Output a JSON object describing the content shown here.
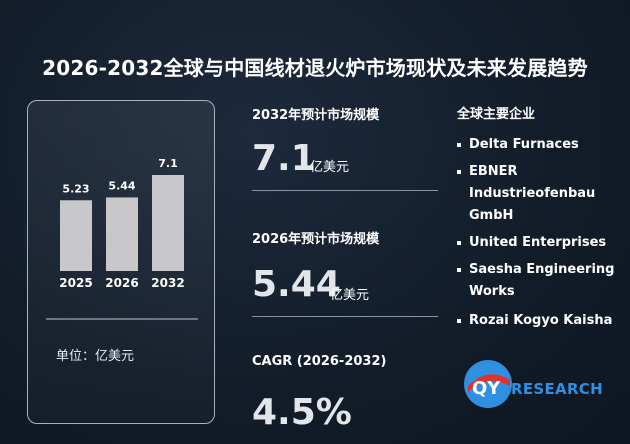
{
  "title": "2026-2032全球与中国线材退火炉市场现状及未来发展趋势",
  "chart_data": {
    "type": "bar",
    "categories": [
      "2025",
      "2026",
      "2032"
    ],
    "values": [
      5.23,
      5.44,
      7.1
    ],
    "value_labels": [
      "5.23",
      "5.44",
      "7.1"
    ],
    "bar_color": "#c8c8ca",
    "unit_label": "单位：亿美元"
  },
  "stats": {
    "forecast_2032_label": "2032年预计市场规模",
    "forecast_2032_value": "7.1",
    "forecast_2032_unit": "亿美元",
    "forecast_2026_label": "2026年预计市场规模",
    "forecast_2026_value": "5.44",
    "forecast_2026_unit": "亿美元",
    "cagr_label": "CAGR (2026-2032)",
    "cagr_value": "4.5%"
  },
  "companies": {
    "title": "全球主要企业",
    "items": [
      "Delta Furnaces",
      "EBNER Industrieofenbau GmbH",
      "United Enterprises",
      "Saesha Engineering Works",
      "Rozai Kogyo Kaisha"
    ]
  },
  "logo": {
    "letter": "QY",
    "text": "RESEARCH",
    "color": "#2f8fe0",
    "accent": "#e0312e"
  }
}
